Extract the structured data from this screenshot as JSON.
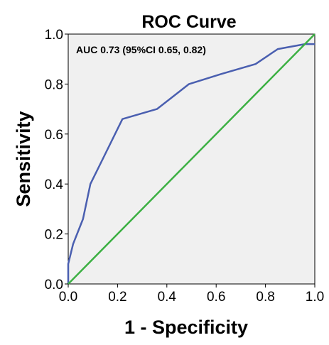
{
  "chart_data": {
    "type": "line",
    "title": "ROC Curve",
    "xlabel": "1 - Specificity",
    "ylabel": "Sensitivity",
    "xlim": [
      0,
      1
    ],
    "ylim": [
      0,
      1
    ],
    "x_ticks": [
      "0.0",
      "0.2",
      "0.4",
      "0.6",
      "0.8",
      "1.0"
    ],
    "y_ticks": [
      "0.0",
      "0.2",
      "0.4",
      "0.6",
      "0.8",
      "1.0"
    ],
    "annotation": "AUC 0.73 (95%CI 0.65, 0.82)",
    "grid": false,
    "colors": {
      "plot_background": "#f0f0f0",
      "roc_line": "#4a5fb0",
      "reference_line": "#3cb043"
    },
    "series": [
      {
        "color": "#4a5fb0",
        "points": [
          [
            0.0,
            0.0
          ],
          [
            0.0,
            0.08
          ],
          [
            0.02,
            0.16
          ],
          [
            0.06,
            0.26
          ],
          [
            0.09,
            0.4
          ],
          [
            0.14,
            0.5
          ],
          [
            0.22,
            0.66
          ],
          [
            0.36,
            0.7
          ],
          [
            0.49,
            0.8
          ],
          [
            0.62,
            0.84
          ],
          [
            0.76,
            0.88
          ],
          [
            0.85,
            0.94
          ],
          [
            0.96,
            0.96
          ],
          [
            1.0,
            0.96
          ]
        ]
      },
      {
        "color": "#3cb043",
        "points": [
          [
            0.0,
            0.0
          ],
          [
            1.0,
            1.0
          ]
        ]
      }
    ]
  }
}
